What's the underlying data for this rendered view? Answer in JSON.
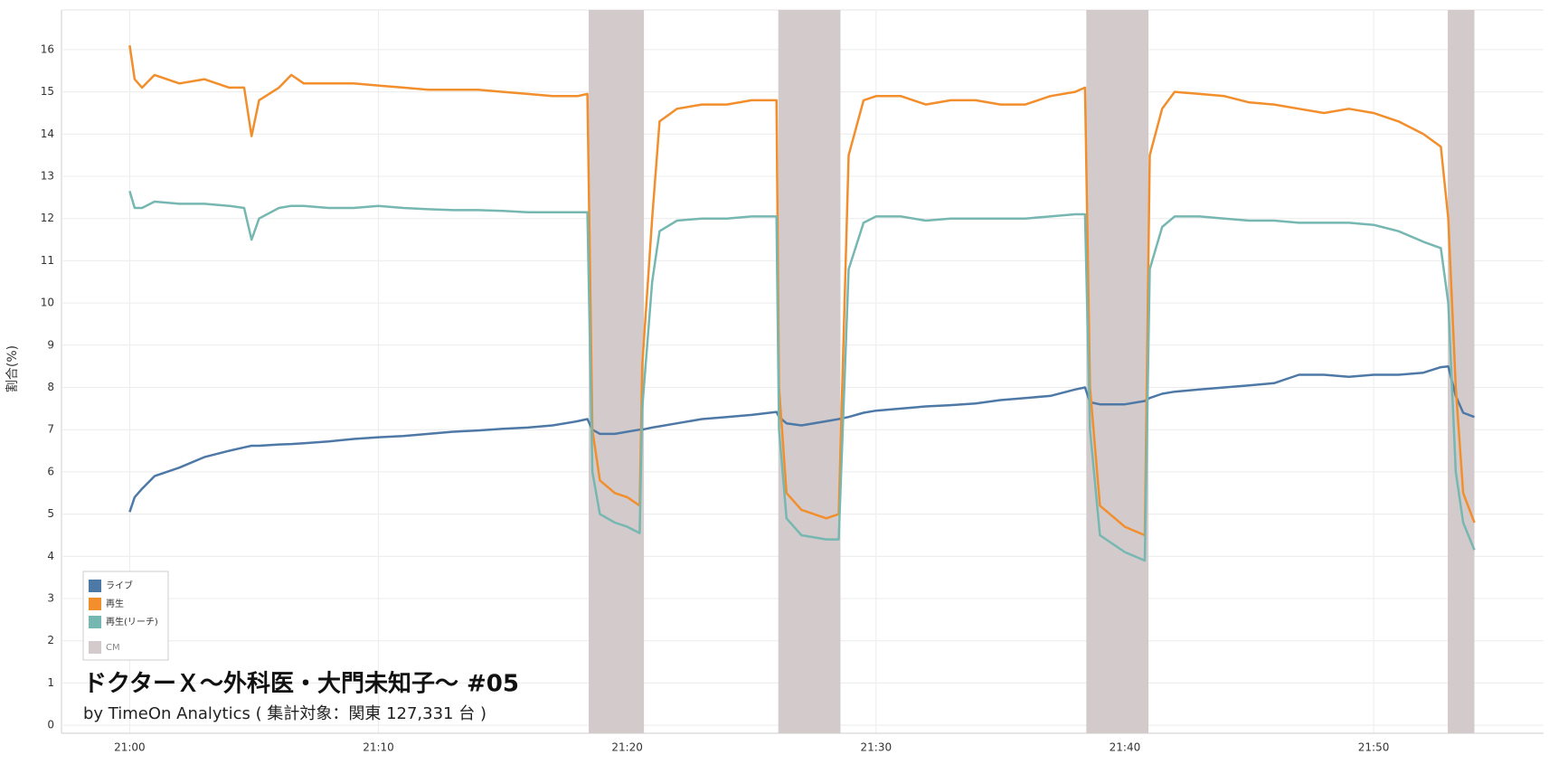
{
  "chart_data": {
    "type": "line",
    "title": "ドクターＸ～外科医・大門未知子～ #05",
    "subtitle": "by TimeOn Analytics ( 集計対象：関東 127,331 台 )",
    "y_label": "割合(%)",
    "x": [
      0,
      0.2,
      0.5,
      1,
      2,
      3,
      4,
      4.6,
      4.9,
      5.2,
      6,
      6.5,
      7,
      8,
      9,
      10,
      11,
      12,
      13,
      14,
      15,
      16,
      17,
      18,
      18.4,
      18.6,
      18.9,
      19.5,
      20,
      20.5,
      20.6,
      21,
      21.3,
      22,
      23,
      24,
      25,
      26,
      26.1,
      26.4,
      27,
      28,
      28.5,
      28.9,
      29.5,
      30,
      31,
      32,
      33,
      34,
      35,
      36,
      37,
      38,
      38.4,
      38.6,
      39,
      40,
      40.8,
      41,
      41.5,
      42,
      43,
      44,
      45,
      46,
      47,
      48,
      49,
      50,
      51,
      52,
      52.7,
      53,
      53.3,
      53.6,
      54.05
    ],
    "series": [
      {
        "name": "ライブ",
        "color": "#4e79a7",
        "values": [
          5.05,
          5.4,
          5.6,
          5.9,
          6.1,
          6.35,
          6.5,
          6.58,
          6.62,
          6.62,
          6.65,
          6.66,
          6.68,
          6.72,
          6.78,
          6.82,
          6.85,
          6.9,
          6.95,
          6.98,
          7.02,
          7.05,
          7.1,
          7.2,
          7.25,
          7.0,
          6.9,
          6.9,
          6.95,
          7.0,
          7.0,
          7.05,
          7.08,
          7.15,
          7.25,
          7.3,
          7.35,
          7.42,
          7.3,
          7.15,
          7.1,
          7.2,
          7.25,
          7.3,
          7.4,
          7.45,
          7.5,
          7.55,
          7.58,
          7.62,
          7.7,
          7.75,
          7.8,
          7.95,
          8.0,
          7.65,
          7.6,
          7.6,
          7.68,
          7.75,
          7.85,
          7.9,
          7.95,
          8.0,
          8.05,
          8.1,
          8.3,
          8.3,
          8.25,
          8.3,
          8.3,
          8.35,
          8.48,
          8.5,
          7.8,
          7.4,
          7.3
        ]
      },
      {
        "name": "再生",
        "color": "#f28e2b",
        "values": [
          16.1,
          15.3,
          15.1,
          15.4,
          15.2,
          15.3,
          15.1,
          15.1,
          13.95,
          14.8,
          15.1,
          15.4,
          15.2,
          15.2,
          15.2,
          15.15,
          15.1,
          15.05,
          15.05,
          15.05,
          15.0,
          14.95,
          14.9,
          14.9,
          14.95,
          7.0,
          5.8,
          5.5,
          5.4,
          5.2,
          8.5,
          12.0,
          14.3,
          14.6,
          14.7,
          14.7,
          14.8,
          14.8,
          8.0,
          5.5,
          5.1,
          4.9,
          5.0,
          13.5,
          14.8,
          14.9,
          14.9,
          14.7,
          14.8,
          14.8,
          14.7,
          14.7,
          14.9,
          15.0,
          15.1,
          8.0,
          5.2,
          4.7,
          4.5,
          13.5,
          14.6,
          15.0,
          14.95,
          14.9,
          14.75,
          14.7,
          14.6,
          14.5,
          14.6,
          14.5,
          14.3,
          14.0,
          13.7,
          12.0,
          8.0,
          5.5,
          4.8
        ]
      },
      {
        "name": "再生(リーチ)",
        "color": "#76b7b2",
        "values": [
          12.65,
          12.25,
          12.25,
          12.4,
          12.35,
          12.35,
          12.3,
          12.25,
          11.5,
          12.0,
          12.25,
          12.3,
          12.3,
          12.25,
          12.25,
          12.3,
          12.25,
          12.22,
          12.2,
          12.2,
          12.18,
          12.15,
          12.15,
          12.15,
          12.15,
          6.0,
          5.0,
          4.8,
          4.7,
          4.55,
          7.5,
          10.5,
          11.7,
          11.95,
          12.0,
          12.0,
          12.05,
          12.05,
          7.0,
          4.9,
          4.5,
          4.4,
          4.4,
          10.8,
          11.9,
          12.05,
          12.05,
          11.95,
          12.0,
          12.0,
          12.0,
          12.0,
          12.05,
          12.1,
          12.1,
          7.0,
          4.5,
          4.1,
          3.9,
          10.8,
          11.8,
          12.05,
          12.05,
          12.0,
          11.95,
          11.95,
          11.9,
          11.9,
          11.9,
          11.85,
          11.7,
          11.45,
          11.3,
          10.0,
          6.0,
          4.8,
          4.15
        ]
      }
    ],
    "bands": {
      "name": "CM",
      "color": "#d3cbcb",
      "ranges": [
        [
          18.45,
          20.67
        ],
        [
          26.07,
          28.57
        ],
        [
          38.45,
          40.95
        ],
        [
          52.98,
          54.05
        ]
      ]
    },
    "xlim": [
      -2.74,
      56.83
    ],
    "xticks": [
      {
        "value": 0,
        "label": "21:00"
      },
      {
        "value": 10,
        "label": "21:10"
      },
      {
        "value": 20,
        "label": "21:20"
      },
      {
        "value": 30,
        "label": "21:30"
      },
      {
        "value": 40,
        "label": "21:40"
      },
      {
        "value": 50,
        "label": "21:50"
      }
    ],
    "ylim": [
      -0.19,
      16.94
    ],
    "yticks": [
      0,
      1,
      2,
      3,
      4,
      5,
      6,
      7,
      8,
      9,
      10,
      11,
      12,
      13,
      14,
      15,
      16
    ],
    "grid": true
  }
}
